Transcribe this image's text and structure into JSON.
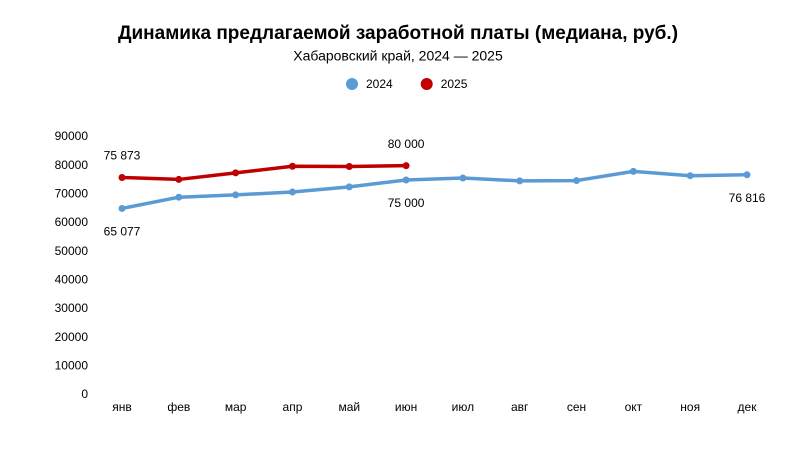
{
  "chart_data": {
    "type": "line",
    "title": "Динамика предлагаемой заработной платы (медиана, руб.)",
    "subtitle": "Хабаровский край, 2024 — 2025",
    "categories": [
      "янв",
      "фев",
      "мар",
      "апр",
      "май",
      "июн",
      "июл",
      "авг",
      "сен",
      "окт",
      "ноя",
      "дек"
    ],
    "series": [
      {
        "name": "2024",
        "color": "#5b9bd5",
        "values": [
          65077,
          69000,
          69800,
          70800,
          72600,
          75000,
          75700,
          74700,
          74800,
          78000,
          76500,
          76816
        ],
        "value_labels": [
          "65 077",
          null,
          null,
          null,
          null,
          "75 000",
          null,
          null,
          null,
          null,
          null,
          "76 816"
        ]
      },
      {
        "name": "2025",
        "color": "#c00000",
        "values": [
          75873,
          75200,
          77500,
          79800,
          79700,
          80000,
          null,
          null,
          null,
          null,
          null,
          null
        ],
        "value_labels": [
          "75 873",
          null,
          null,
          null,
          null,
          "80 000",
          null,
          null,
          null,
          null,
          null,
          null
        ]
      }
    ],
    "ylim": [
      0,
      90000
    ],
    "yticks": [
      0,
      10000,
      20000,
      30000,
      40000,
      50000,
      60000,
      70000,
      80000,
      90000
    ],
    "legend": "top"
  }
}
